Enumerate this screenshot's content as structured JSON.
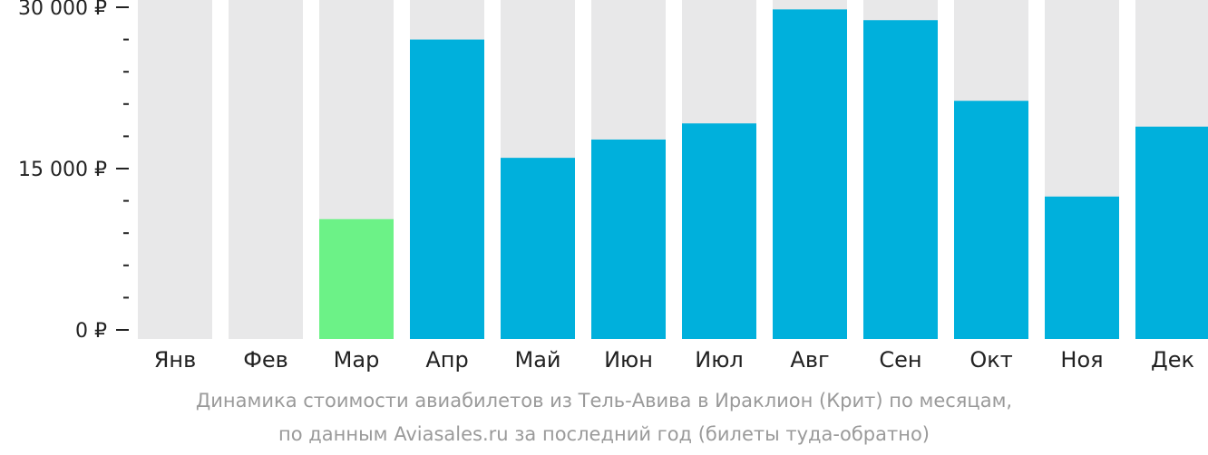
{
  "chart_data": {
    "type": "bar",
    "categories": [
      "Янв",
      "Фев",
      "Мар",
      "Апр",
      "Май",
      "Июн",
      "Июл",
      "Авг",
      "Сен",
      "Окт",
      "Ноя",
      "Дек"
    ],
    "values": [
      null,
      null,
      10300,
      27000,
      16000,
      17700,
      19200,
      29800,
      28800,
      21300,
      12400,
      18900
    ],
    "ylim": [
      0,
      30000
    ],
    "yticks": [
      {
        "value": 0,
        "label": "0 ₽"
      },
      {
        "value": 15000,
        "label": "15 000 ₽"
      },
      {
        "value": 30000,
        "label": "30 000 ₽"
      }
    ],
    "minor_tick_step": 3000,
    "highlight_index": 2,
    "colors": {
      "bar": "#00b0dc",
      "highlight": "#6cf287",
      "background_column": "#e8e8e9",
      "axis": "#222222"
    },
    "caption_line1": "Динамика стоимости авиабилетов из Тель-Авива в Ираклион (Крит) по месяцам,",
    "caption_line2": "по данным Aviasales.ru за последний год (билеты туда-обратно)",
    "grid": false,
    "legend": "none"
  }
}
